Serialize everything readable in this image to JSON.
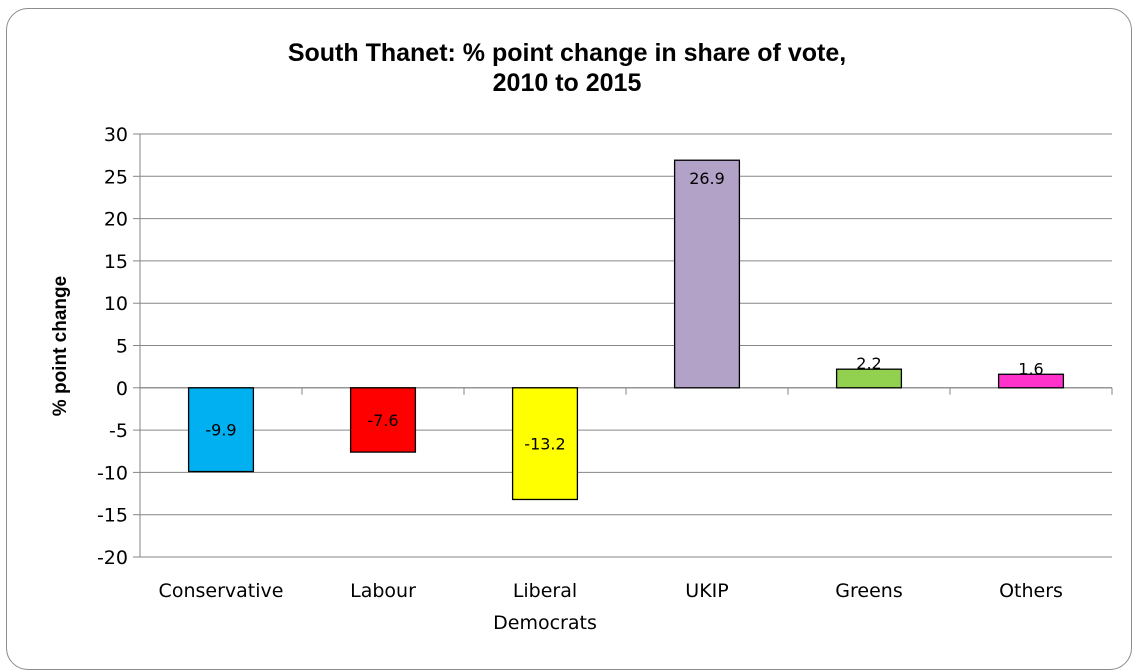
{
  "chart_data": {
    "type": "bar",
    "title_lines": [
      "South Thanet: % point change in share of vote,",
      "2010 to 2015"
    ],
    "ylabel": "% point change",
    "xlabel": "",
    "ylim": [
      -20,
      30
    ],
    "yticks": [
      30,
      25,
      20,
      15,
      10,
      5,
      0,
      -5,
      -10,
      -15,
      -20
    ],
    "categories": [
      [
        "Conservative"
      ],
      [
        "Labour"
      ],
      [
        "Liberal",
        "Democrats"
      ],
      [
        "UKIP"
      ],
      [
        "Greens"
      ],
      [
        "Others"
      ]
    ],
    "values": [
      -9.9,
      -7.6,
      -13.2,
      26.9,
      2.2,
      1.6
    ],
    "data_labels": [
      "-9.9",
      "-7.6",
      "-13.2",
      "26.9",
      "2.2",
      "1.6"
    ],
    "colors": [
      "#00b0f0",
      "#ff0000",
      "#ffff00",
      "#b3a2c7",
      "#92d050",
      "#ff33cc"
    ],
    "grid": true,
    "legend": "none"
  }
}
